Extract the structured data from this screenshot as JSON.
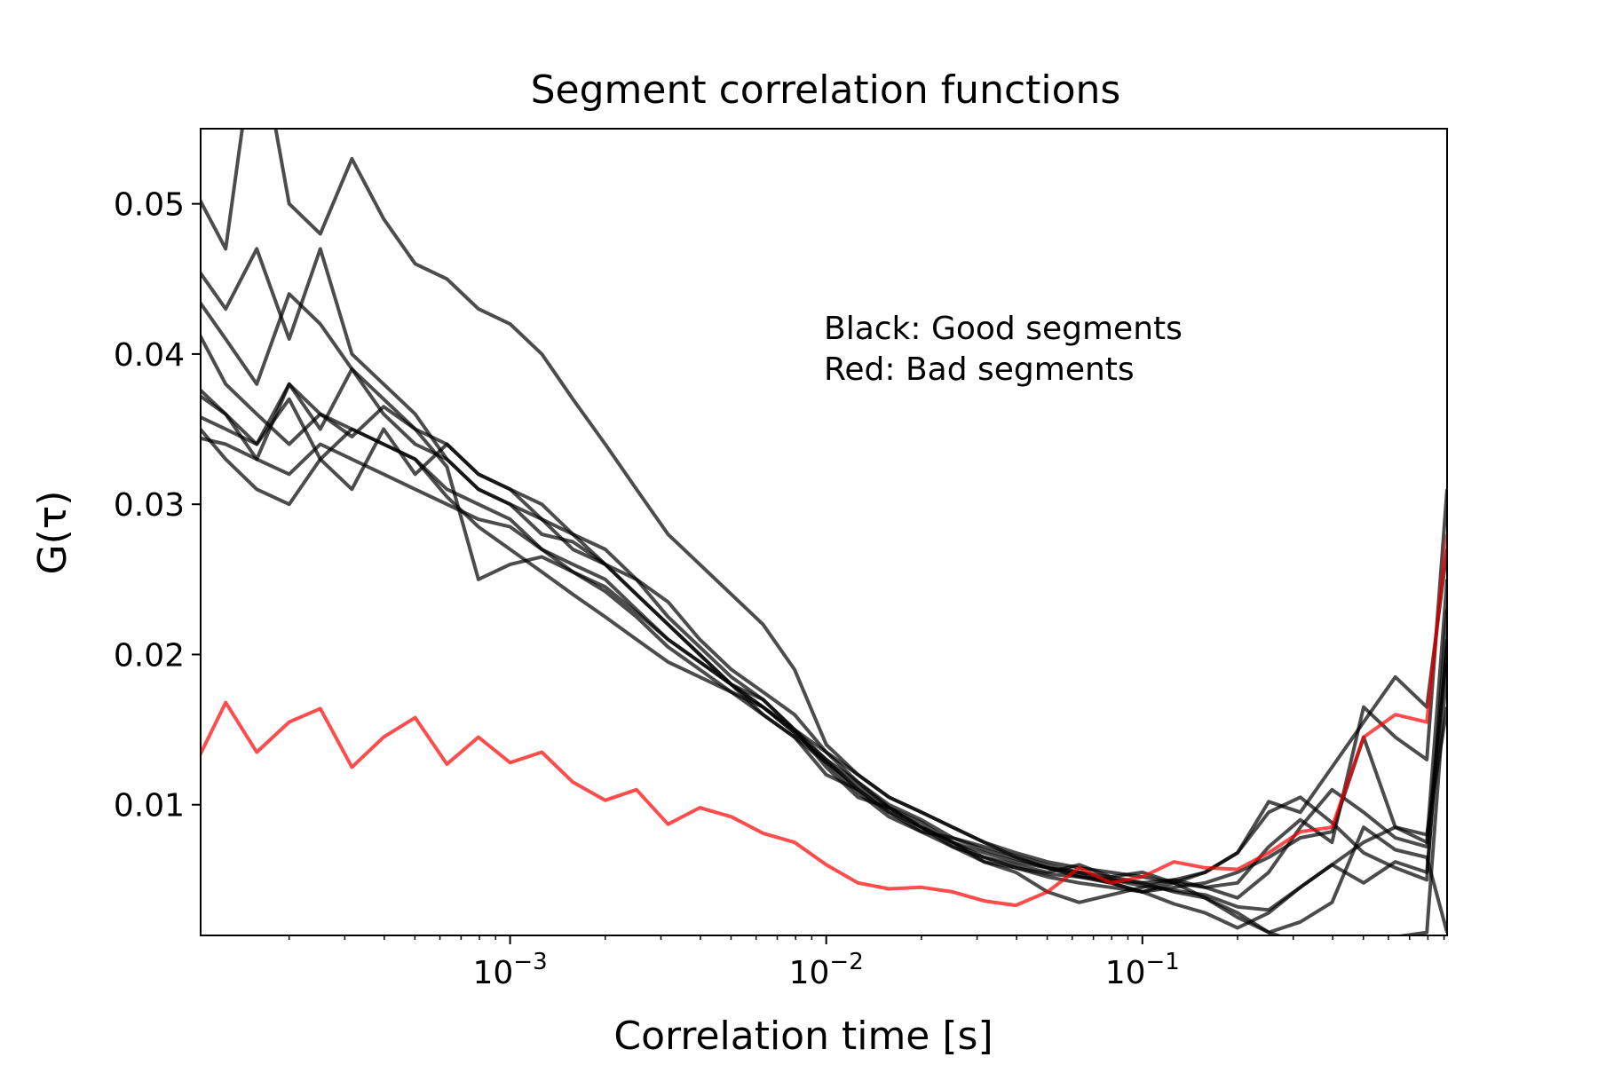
{
  "chart_data": {
    "type": "line",
    "title": "Segment correlation functions",
    "xlabel": "Correlation time [s]",
    "ylabel": "G(τ)",
    "xscale": "log",
    "xlim": [
      0.000105,
      0.92
    ],
    "ylim": [
      0.0013,
      0.055
    ],
    "grid": false,
    "x_ticks": [
      {
        "value": 0.001,
        "base": "10",
        "exp": "−3"
      },
      {
        "value": 0.01,
        "base": "10",
        "exp": "−2"
      },
      {
        "value": 0.1,
        "base": "10",
        "exp": "−1"
      }
    ],
    "y_ticks": [
      {
        "value": 0.01,
        "label": "0.01"
      },
      {
        "value": 0.02,
        "label": "0.02"
      },
      {
        "value": 0.03,
        "label": "0.03"
      },
      {
        "value": 0.04,
        "label": "0.04"
      },
      {
        "value": 0.05,
        "label": "0.05"
      }
    ],
    "annotation": [
      "Black: Good segments",
      "Red: Bad segments"
    ],
    "colors": {
      "good": "#000000",
      "bad": "#ff0000"
    },
    "x": [
      0.0001,
      0.000126,
      0.000158,
      0.0002,
      0.000251,
      0.000316,
      0.000398,
      0.000501,
      0.000631,
      0.000794,
      0.001,
      0.00126,
      0.00158,
      0.002,
      0.00251,
      0.00316,
      0.00398,
      0.00501,
      0.00631,
      0.00794,
      0.01,
      0.0126,
      0.0158,
      0.02,
      0.0251,
      0.0316,
      0.0398,
      0.0501,
      0.0631,
      0.0794,
      0.1,
      0.126,
      0.158,
      0.2,
      0.251,
      0.316,
      0.398,
      0.501,
      0.631,
      0.794,
      0.92
    ],
    "series": [
      {
        "group": "good",
        "values": [
          0.051,
          0.047,
          0.062,
          0.05,
          0.048,
          0.053,
          0.049,
          0.046,
          0.045,
          0.043,
          0.042,
          0.04,
          0.037,
          0.034,
          0.031,
          0.028,
          0.026,
          0.024,
          0.022,
          0.019,
          0.014,
          0.012,
          0.0105,
          0.0095,
          0.0085,
          0.0075,
          0.0065,
          0.0058,
          0.0052,
          0.005,
          0.0048,
          0.005,
          0.0045,
          0.0048,
          0.0072,
          0.009,
          0.0075,
          0.0165,
          0.0145,
          0.013,
          0.031
        ]
      },
      {
        "group": "good",
        "values": [
          0.046,
          0.043,
          0.047,
          0.041,
          0.047,
          0.04,
          0.038,
          0.036,
          0.033,
          0.031,
          0.03,
          0.029,
          0.027,
          0.026,
          0.024,
          0.022,
          0.02,
          0.018,
          0.017,
          0.015,
          0.013,
          0.011,
          0.0095,
          0.0085,
          0.0075,
          0.0065,
          0.006,
          0.0055,
          0.006,
          0.0052,
          0.0055,
          0.0048,
          0.0055,
          0.0068,
          0.0102,
          0.0095,
          0.0125,
          0.0155,
          0.0185,
          0.0165,
          0.027
        ]
      },
      {
        "group": "good",
        "values": [
          0.044,
          0.041,
          0.038,
          0.044,
          0.042,
          0.039,
          0.037,
          0.035,
          0.034,
          0.032,
          0.031,
          0.029,
          0.028,
          0.026,
          0.024,
          0.022,
          0.02,
          0.018,
          0.0165,
          0.0148,
          0.013,
          0.0115,
          0.0098,
          0.0088,
          0.0075,
          0.0062,
          0.0058,
          0.0054,
          0.0052,
          0.0048,
          0.0042,
          0.0045,
          0.0048,
          0.0055,
          0.0065,
          0.0078,
          0.0082,
          0.0145,
          0.0085,
          0.0075,
          0.025
        ]
      },
      {
        "group": "good",
        "values": [
          0.042,
          0.038,
          0.036,
          0.034,
          0.036,
          0.035,
          0.034,
          0.033,
          0.031,
          0.03,
          0.029,
          0.027,
          0.026,
          0.025,
          0.023,
          0.021,
          0.0195,
          0.018,
          0.016,
          0.0145,
          0.012,
          0.011,
          0.0095,
          0.0082,
          0.0072,
          0.0065,
          0.0058,
          0.0052,
          0.0048,
          0.0045,
          0.0042,
          0.0048,
          0.0038,
          0.0025,
          0.0015,
          0.0022,
          0.0035,
          0.0085,
          0.007,
          0.0065,
          0.0015
        ]
      },
      {
        "group": "good",
        "values": [
          0.038,
          0.036,
          0.033,
          0.038,
          0.035,
          0.039,
          0.036,
          0.034,
          0.033,
          0.031,
          0.03,
          0.028,
          0.0275,
          0.026,
          0.025,
          0.0235,
          0.021,
          0.019,
          0.0175,
          0.016,
          0.0135,
          0.0115,
          0.01,
          0.009,
          0.0078,
          0.007,
          0.0064,
          0.0058,
          0.0053,
          0.0048,
          0.0042,
          0.0034,
          0.0028,
          0.0018,
          0.0028,
          0.0045,
          0.006,
          0.0048,
          0.0062,
          0.0055,
          0.021
        ]
      },
      {
        "group": "good",
        "values": [
          0.036,
          0.035,
          0.034,
          0.037,
          0.033,
          0.031,
          0.035,
          0.032,
          0.034,
          0.032,
          0.031,
          0.03,
          0.028,
          0.027,
          0.025,
          0.0225,
          0.0205,
          0.0185,
          0.017,
          0.015,
          0.0125,
          0.0105,
          0.0098,
          0.0085,
          0.0072,
          0.0062,
          0.0055,
          0.0042,
          0.0035,
          0.004,
          0.0045,
          0.005,
          0.0055,
          0.0068,
          0.0095,
          0.0105,
          0.0088,
          0.0068,
          0.0058,
          0.005,
          0.023
        ]
      },
      {
        "group": "good",
        "values": [
          0.0345,
          0.034,
          0.033,
          0.032,
          0.034,
          0.033,
          0.032,
          0.031,
          0.03,
          0.029,
          0.0285,
          0.027,
          0.0255,
          0.0245,
          0.0228,
          0.021,
          0.0195,
          0.018,
          0.0165,
          0.0148,
          0.0128,
          0.0112,
          0.0098,
          0.0085,
          0.0075,
          0.0068,
          0.0062,
          0.0058,
          0.0055,
          0.0052,
          0.0048,
          0.0042,
          0.0038,
          0.0028,
          0.0015,
          0.0008,
          0.0005,
          0.0008,
          0.0012,
          0.0015,
          0.0195
        ]
      },
      {
        "group": "good",
        "values": [
          0.0355,
          0.033,
          0.031,
          0.03,
          0.033,
          0.035,
          0.034,
          0.033,
          0.0305,
          0.0285,
          0.027,
          0.0255,
          0.024,
          0.0225,
          0.021,
          0.0195,
          0.0185,
          0.0175,
          0.0165,
          0.015,
          0.0135,
          0.012,
          0.0105,
          0.0095,
          0.0085,
          0.0075,
          0.0068,
          0.0062,
          0.0058,
          0.0055,
          0.0052,
          0.0048,
          0.0045,
          0.0038,
          0.0055,
          0.0085,
          0.011,
          0.0095,
          0.0078,
          0.0072,
          0.0205
        ]
      },
      {
        "group": "good",
        "values": [
          0.0375,
          0.036,
          0.034,
          0.038,
          0.036,
          0.0345,
          0.0365,
          0.035,
          0.0325,
          0.025,
          0.026,
          0.0265,
          0.0255,
          0.0242,
          0.0225,
          0.0205,
          0.019,
          0.0175,
          0.016,
          0.0145,
          0.0128,
          0.0108,
          0.0092,
          0.0082,
          0.0078,
          0.0072,
          0.0066,
          0.006,
          0.0055,
          0.005,
          0.0046,
          0.0043,
          0.004,
          0.0032,
          0.003,
          0.0045,
          0.006,
          0.0075,
          0.0085,
          0.008,
          0.0165
        ]
      },
      {
        "group": "bad",
        "values": [
          0.0125,
          0.0168,
          0.0135,
          0.0155,
          0.0164,
          0.0125,
          0.0145,
          0.0158,
          0.0127,
          0.0145,
          0.0128,
          0.0135,
          0.0115,
          0.0103,
          0.011,
          0.0087,
          0.0098,
          0.0092,
          0.0081,
          0.0075,
          0.006,
          0.0048,
          0.0044,
          0.0045,
          0.0042,
          0.0036,
          0.0033,
          0.0042,
          0.0058,
          0.0048,
          0.0052,
          0.0062,
          0.0058,
          0.0057,
          0.0068,
          0.0082,
          0.0085,
          0.0145,
          0.016,
          0.0155,
          0.028
        ]
      }
    ]
  }
}
